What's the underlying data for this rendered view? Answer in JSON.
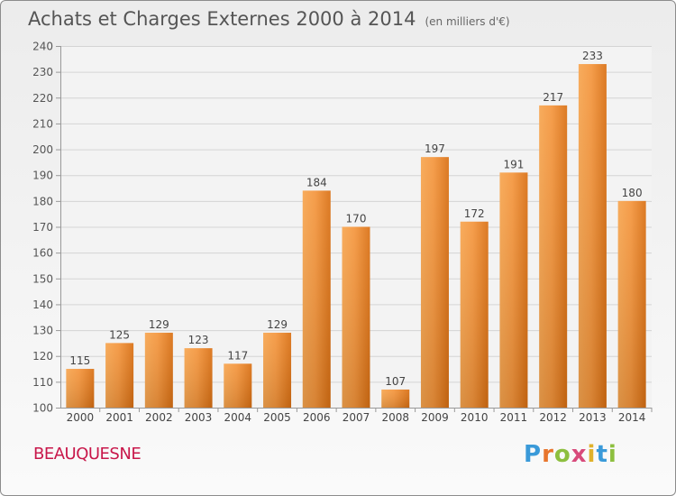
{
  "chart_data": {
    "type": "bar",
    "title": "Achats et Charges Externes 2000 à 2014",
    "subtitle": "(en milliers d'€)",
    "categories": [
      "2000",
      "2001",
      "2002",
      "2003",
      "2004",
      "2005",
      "2006",
      "2007",
      "2008",
      "2009",
      "2010",
      "2011",
      "2012",
      "2013",
      "2014"
    ],
    "values": [
      115,
      125,
      129,
      123,
      117,
      129,
      184,
      170,
      107,
      197,
      172,
      191,
      217,
      233,
      180
    ],
    "data_labels": [
      "115",
      "125",
      "129",
      "123",
      "117",
      "129",
      "184",
      "170",
      "107",
      "197",
      "172",
      "191",
      "217",
      "233",
      "180"
    ],
    "yticks": [
      "100",
      "110",
      "120",
      "130",
      "140",
      "150",
      "160",
      "170",
      "180",
      "190",
      "200",
      "210",
      "220",
      "230",
      "240"
    ],
    "ylim": [
      100,
      240
    ],
    "grid": true,
    "bar_color": "#f08c32"
  },
  "footer": {
    "place": "BEAUQUESNE",
    "logo": "Proxiti"
  }
}
